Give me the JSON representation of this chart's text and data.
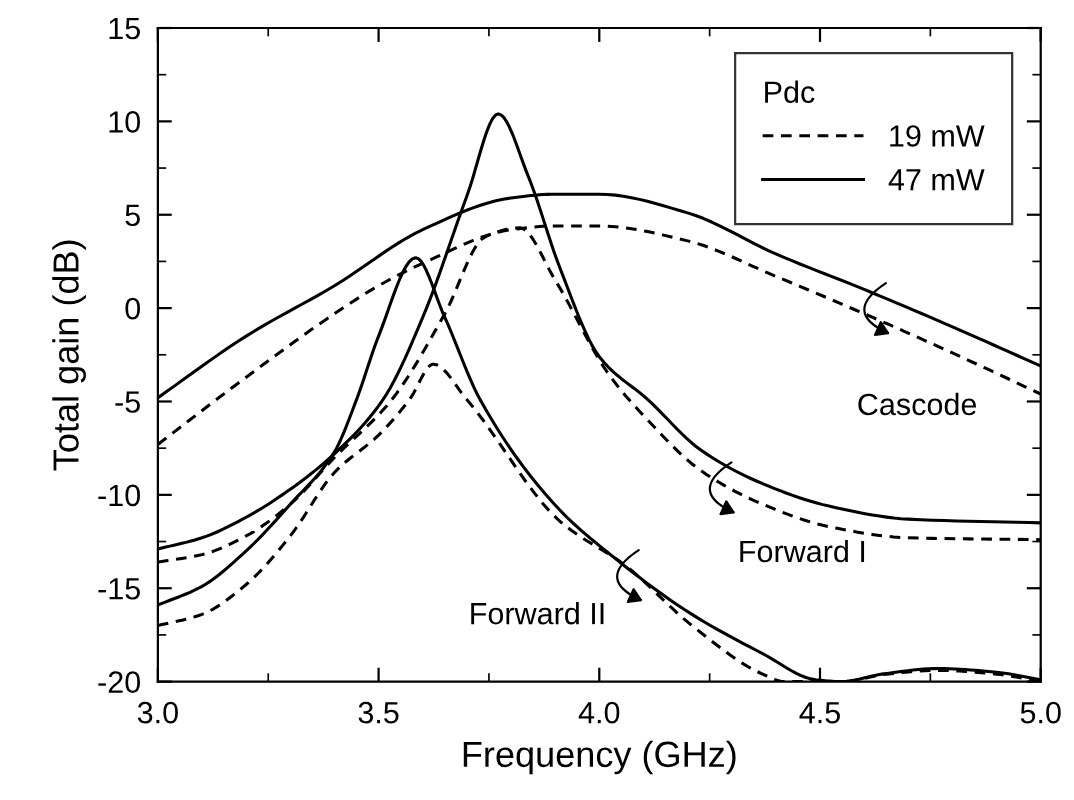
{
  "chart_data": {
    "type": "line",
    "xlabel": "Frequency (GHz)",
    "ylabel": "Total gain (dB)",
    "legend_title": "Pdc",
    "legend": "top right",
    "grid": false,
    "marker": "none",
    "xlim": [
      3.0,
      5.0
    ],
    "ylim": [
      -20,
      15
    ],
    "xticks": [
      {
        "value": 3.0,
        "label": "3.0"
      },
      {
        "value": 3.5,
        "label": "3.5"
      },
      {
        "value": 4.0,
        "label": "4.0"
      },
      {
        "value": 4.5,
        "label": "4.5"
      },
      {
        "value": 5.0,
        "label": "5.0"
      }
    ],
    "yticks": [
      -20,
      -15,
      -10,
      -5,
      0,
      5,
      10,
      15
    ],
    "series": [
      {
        "name": "19 mW",
        "color": "#000000",
        "line_style": "dashed",
        "x": [
          3.0,
          3.2,
          3.4,
          3.5,
          3.6,
          3.8,
          3.9,
          4.0,
          4.2,
          4.4,
          4.6,
          4.8,
          5.0
        ],
        "values": [
          -7.3,
          -3.7,
          -0.3,
          1.2,
          2.4,
          4.2,
          4.4,
          4.4,
          3.6,
          1.7,
          -0.3,
          -2.4,
          -4.6
        ]
      },
      {
        "name": "47 mW",
        "color": "#000000",
        "line_style": "solid",
        "x": [
          3.0,
          3.2,
          3.4,
          3.6,
          3.8,
          3.9,
          4.0,
          4.2,
          4.4,
          4.6,
          4.8,
          5.0
        ],
        "values": [
          -4.8,
          -1.5,
          1.2,
          4.2,
          5.9,
          6.1,
          6.1,
          5.1,
          2.9,
          1.0,
          -1.0,
          -3.1
        ]
      },
      {
        "color": "#000000",
        "line_style": "solid",
        "x": [
          3.0,
          3.1,
          3.2,
          3.3,
          3.4,
          3.51,
          3.6,
          3.7,
          3.771,
          3.84,
          3.91,
          4.0,
          4.11,
          4.23,
          4.37,
          4.52,
          4.7,
          5.0
        ],
        "values": [
          -12.9,
          -12.3,
          -11.2,
          -9.7,
          -7.8,
          -4.9,
          -0.5,
          6.0,
          10.4,
          7.0,
          2.2,
          -2.6,
          -4.9,
          -7.6,
          -9.4,
          -10.6,
          -11.3,
          -11.5
        ]
      },
      {
        "color": "#000000",
        "line_style": "dashed",
        "x": [
          3.0,
          3.1,
          3.2,
          3.3,
          3.4,
          3.53,
          3.65,
          3.74,
          3.82,
          3.9,
          4.02,
          4.11,
          4.23,
          4.37,
          4.52,
          4.7,
          5.0
        ],
        "values": [
          -13.6,
          -13.2,
          -12.2,
          -10.5,
          -8.0,
          -4.9,
          -0.3,
          3.8,
          4.3,
          1.5,
          -3.5,
          -6.0,
          -8.7,
          -10.5,
          -11.7,
          -12.3,
          -12.4
        ]
      },
      {
        "color": "#000000",
        "line_style": "solid",
        "x": [
          3.0,
          3.1,
          3.2,
          3.3,
          3.4,
          3.45,
          3.5,
          3.584,
          3.65,
          3.73,
          3.91,
          4.02,
          4.21,
          4.37,
          4.49,
          4.55,
          4.64,
          4.77,
          4.9,
          5.0
        ],
        "values": [
          -15.9,
          -14.9,
          -13.0,
          -10.5,
          -7.7,
          -4.9,
          -1.5,
          2.7,
          -0.5,
          -4.9,
          -10.8,
          -13.1,
          -16.4,
          -18.5,
          -19.9,
          -20.0,
          -19.6,
          -19.3,
          -19.5,
          -19.9
        ]
      },
      {
        "color": "#000000",
        "line_style": "dashed",
        "x": [
          3.0,
          3.1,
          3.2,
          3.3,
          3.4,
          3.5,
          3.57,
          3.624,
          3.7,
          3.91,
          4.06,
          4.21,
          4.37,
          4.42,
          4.55,
          4.65,
          4.77,
          4.9,
          5.0
        ],
        "values": [
          -17.0,
          -16.4,
          -14.8,
          -12.2,
          -8.8,
          -6.8,
          -4.9,
          -3.0,
          -4.9,
          -11.4,
          -13.8,
          -17.0,
          -19.6,
          -20.0,
          -20.0,
          -19.6,
          -19.4,
          -19.6,
          -20.0
        ]
      }
    ],
    "annotations": [
      "Cascode",
      "Forward I",
      "Forward II"
    ]
  }
}
